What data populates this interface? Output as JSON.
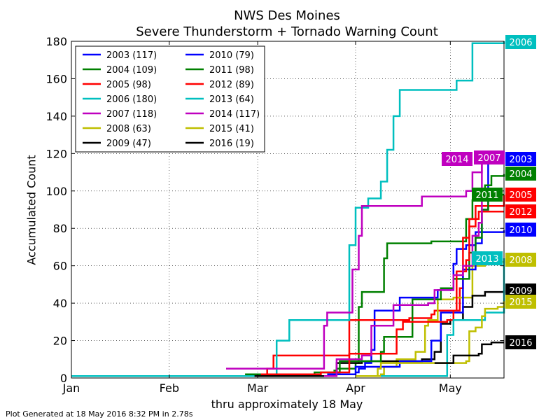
{
  "chart_data": {
    "type": "line",
    "title": "NWS Des Moines",
    "subtitle": "Severe Thunderstorm + Tornado Warning Count",
    "xlabel": "thru approximately 18 May",
    "ylabel": "Accumulated Count",
    "xlim": [
      "Jan 1",
      "May 18"
    ],
    "ylim": [
      0,
      180
    ],
    "x_ticks": [
      "Jan",
      "Feb",
      "Mar",
      "Apr",
      "May"
    ],
    "y_ticks": [
      0,
      20,
      40,
      60,
      80,
      100,
      120,
      140,
      160,
      180
    ],
    "grid": true,
    "legend_position": "top-left",
    "series": [
      {
        "name": "2003 (117)",
        "color": "#0000ff",
        "end_label": "2003",
        "points": [
          [
            "Apr 1",
            3
          ],
          [
            "Apr 2",
            5
          ],
          [
            "Apr 4",
            8
          ],
          [
            "Apr 6",
            15
          ],
          [
            "Apr 7",
            36
          ],
          [
            "Apr 14",
            36
          ],
          [
            "Apr 15",
            43
          ],
          [
            "Apr 26",
            43
          ],
          [
            "Apr 27",
            47
          ],
          [
            "May 1",
            47
          ],
          [
            "May 2",
            61
          ],
          [
            "May 3",
            69
          ],
          [
            "May 6",
            71
          ],
          [
            "May 9",
            78
          ],
          [
            "May 11",
            90
          ],
          [
            "May 13",
            117
          ],
          [
            "May 18",
            117
          ]
        ]
      },
      {
        "name": "2004 (109)",
        "color": "#008000",
        "end_label": "2004",
        "points": [
          [
            "Mar 25",
            4
          ],
          [
            "Mar 26",
            5
          ],
          [
            "Apr 1",
            8
          ],
          [
            "Apr 2",
            38
          ],
          [
            "Apr 3",
            46
          ],
          [
            "Apr 9",
            46
          ],
          [
            "Apr 10",
            64
          ],
          [
            "Apr 11",
            72
          ],
          [
            "Apr 25",
            73
          ],
          [
            "May 4",
            73
          ],
          [
            "May 6",
            85
          ],
          [
            "May 8",
            95
          ],
          [
            "May 12",
            103
          ],
          [
            "May 14",
            108
          ],
          [
            "May 18",
            109
          ]
        ]
      },
      {
        "name": "2005 (98)",
        "color": "#ff0000",
        "end_label": "2005",
        "points": [
          [
            "Mar 3",
            2
          ],
          [
            "Mar 4",
            5
          ],
          [
            "Mar 6",
            12
          ],
          [
            "Mar 29",
            12
          ],
          [
            "Mar 30",
            31
          ],
          [
            "Apr 17",
            31
          ],
          [
            "Apr 18",
            32
          ],
          [
            "Apr 25",
            34
          ],
          [
            "Apr 26",
            36
          ],
          [
            "May 4",
            48
          ],
          [
            "May 5",
            75
          ],
          [
            "May 7",
            81
          ],
          [
            "May 9",
            92
          ],
          [
            "May 18",
            98
          ]
        ]
      },
      {
        "name": "2006 (180)",
        "color": "#00bfbf",
        "end_label": "2006",
        "points": [
          [
            "Jan 1",
            1
          ],
          [
            "Mar 1",
            2
          ],
          [
            "Mar 7",
            20
          ],
          [
            "Mar 11",
            31
          ],
          [
            "Mar 30",
            71
          ],
          [
            "Apr 1",
            91
          ],
          [
            "Apr 5",
            96
          ],
          [
            "Apr 9",
            105
          ],
          [
            "Apr 11",
            122
          ],
          [
            "Apr 13",
            140
          ],
          [
            "Apr 15",
            154
          ],
          [
            "May 1",
            154
          ],
          [
            "May 3",
            159
          ],
          [
            "May 8",
            179
          ],
          [
            "May 18",
            180
          ]
        ]
      },
      {
        "name": "2007 (118)",
        "color": "#bf00bf",
        "end_label": "2007",
        "points": [
          [
            "Feb 19",
            5
          ],
          [
            "Mar 21",
            5
          ],
          [
            "Mar 22",
            28
          ],
          [
            "Mar 23",
            35
          ],
          [
            "Mar 30",
            35
          ],
          [
            "Mar 31",
            58
          ],
          [
            "Apr 2",
            76
          ],
          [
            "Apr 3",
            92
          ],
          [
            "Apr 22",
            97
          ],
          [
            "May 6",
            100
          ],
          [
            "May 8",
            110
          ],
          [
            "May 11",
            118
          ],
          [
            "May 18",
            118
          ]
        ]
      },
      {
        "name": "2008 (63)",
        "color": "#bfbf00",
        "end_label": "2008",
        "points": [
          [
            "Apr 1",
            1
          ],
          [
            "Apr 9",
            2
          ],
          [
            "Apr 10",
            6
          ],
          [
            "Apr 14",
            10
          ],
          [
            "Apr 20",
            14
          ],
          [
            "Apr 23",
            28
          ],
          [
            "Apr 24",
            31
          ],
          [
            "Apr 27",
            42
          ],
          [
            "May 2",
            43
          ],
          [
            "May 8",
            60
          ],
          [
            "May 12",
            62
          ],
          [
            "May 18",
            63
          ]
        ]
      },
      {
        "name": "2009 (47)",
        "color": "#000000",
        "end_label": "2009",
        "points": [
          [
            "Feb 28",
            1
          ],
          [
            "Mar 25",
            2
          ],
          [
            "Mar 26",
            8
          ],
          [
            "Apr 3",
            9
          ],
          [
            "Apr 20",
            9
          ],
          [
            "Apr 22",
            10
          ],
          [
            "Apr 26",
            14
          ],
          [
            "Apr 28",
            29
          ],
          [
            "May 1",
            31
          ],
          [
            "May 5",
            38
          ],
          [
            "May 8",
            44
          ],
          [
            "May 12",
            46
          ],
          [
            "May 18",
            47
          ]
        ]
      },
      {
        "name": "2010 (79)",
        "color": "#0000ff",
        "end_label": "2010",
        "points": [
          [
            "Mar 23",
            2
          ],
          [
            "Apr 1",
            6
          ],
          [
            "Apr 15",
            9
          ],
          [
            "Apr 25",
            20
          ],
          [
            "Apr 28",
            35
          ],
          [
            "May 5",
            58
          ],
          [
            "May 9",
            72
          ],
          [
            "May 11",
            78
          ],
          [
            "May 18",
            79
          ]
        ]
      },
      {
        "name": "2011 (98)",
        "color": "#008000",
        "end_label": "2011",
        "points": [
          [
            "Feb 25",
            2
          ],
          [
            "Mar 19",
            3
          ],
          [
            "Mar 27",
            9
          ],
          [
            "Apr 9",
            14
          ],
          [
            "Apr 10",
            22
          ],
          [
            "Apr 18",
            22
          ],
          [
            "Apr 19",
            42
          ],
          [
            "Apr 26",
            42
          ],
          [
            "Apr 28",
            48
          ],
          [
            "May 2",
            53
          ],
          [
            "May 7",
            67
          ],
          [
            "May 9",
            75
          ],
          [
            "May 11",
            90
          ],
          [
            "May 13",
            98
          ],
          [
            "May 18",
            98
          ]
        ]
      },
      {
        "name": "2012 (89)",
        "color": "#ff0000",
        "end_label": "2012",
        "points": [
          [
            "Mar 2",
            2
          ],
          [
            "Mar 21",
            3
          ],
          [
            "Mar 30",
            13
          ],
          [
            "Apr 13",
            13
          ],
          [
            "Apr 14",
            26
          ],
          [
            "Apr 16",
            30
          ],
          [
            "Apr 28",
            30
          ],
          [
            "Apr 30",
            31
          ],
          [
            "May 2",
            36
          ],
          [
            "May 3",
            57
          ],
          [
            "May 6",
            63
          ],
          [
            "May 7",
            85
          ],
          [
            "May 10",
            89
          ],
          [
            "May 18",
            89
          ]
        ]
      },
      {
        "name": "2013 (64)",
        "color": "#00bfbf",
        "end_label": "2013",
        "points": [
          [
            "Apr 9",
            1
          ],
          [
            "Apr 29",
            1
          ],
          [
            "Apr 30",
            23
          ],
          [
            "May 2",
            31
          ],
          [
            "May 11",
            31
          ],
          [
            "May 12",
            35
          ],
          [
            "May 17",
            35
          ],
          [
            "May 18",
            64
          ]
        ]
      },
      {
        "name": "2014 (117)",
        "color": "#bf00bf",
        "end_label": "2014",
        "points": [
          [
            "Mar 22",
            1
          ],
          [
            "Mar 26",
            10
          ],
          [
            "Apr 3",
            12
          ],
          [
            "Apr 6",
            28
          ],
          [
            "Apr 13",
            39
          ],
          [
            "Apr 24",
            40
          ],
          [
            "Apr 26",
            47
          ],
          [
            "May 1",
            47
          ],
          [
            "May 2",
            55
          ],
          [
            "May 5",
            60
          ],
          [
            "May 8",
            76
          ],
          [
            "May 10",
            83
          ],
          [
            "May 11",
            117
          ],
          [
            "May 18",
            117
          ]
        ]
      },
      {
        "name": "2015 (41)",
        "color": "#bfbf00",
        "end_label": "2015",
        "points": [
          [
            "Apr 1",
            1
          ],
          [
            "Apr 8",
            5
          ],
          [
            "Apr 9",
            8
          ],
          [
            "May 6",
            9
          ],
          [
            "May 7",
            25
          ],
          [
            "May 9",
            27
          ],
          [
            "May 11",
            33
          ],
          [
            "May 12",
            37
          ],
          [
            "May 16",
            38
          ],
          [
            "May 18",
            41
          ]
        ]
      },
      {
        "name": "2016 (19)",
        "color": "#000000",
        "end_label": "2016",
        "points": [
          [
            "Apr 26",
            8
          ],
          [
            "May 1",
            8
          ],
          [
            "May 2",
            12
          ],
          [
            "May 10",
            13
          ],
          [
            "May 11",
            18
          ],
          [
            "May 14",
            19
          ],
          [
            "May 18",
            19
          ]
        ]
      }
    ]
  },
  "footer": "Plot Generated at 18 May 2016 8:32 PM in 2.78s"
}
